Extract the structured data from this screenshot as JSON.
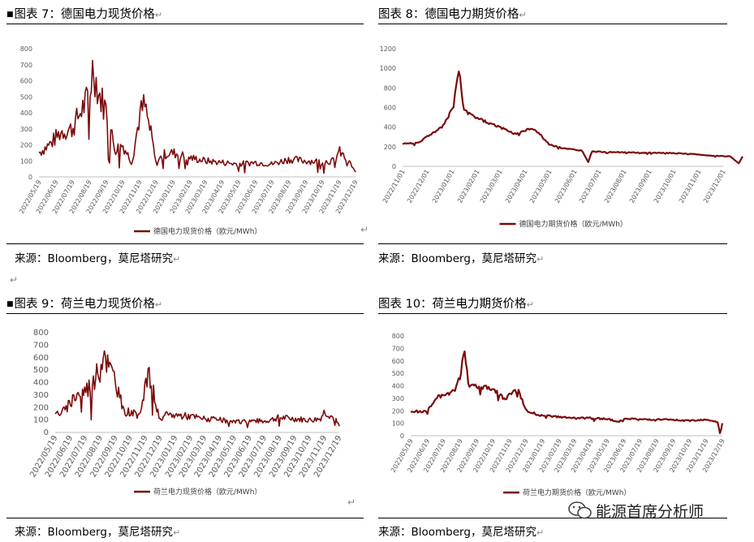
{
  "figures": [
    {
      "title": "图表 7：德国电力现货价格",
      "source": "来源：Bloomberg，莫尼塔研究"
    },
    {
      "title": "图表 8：德国电力期货价格",
      "source": "来源：Bloomberg，莫尼塔研究"
    },
    {
      "title": "图表 9：荷兰电力现货价格",
      "source": "来源：Bloomberg，莫尼塔研究"
    },
    {
      "title": "图表 10：荷兰电力期货价格",
      "source": "来源：Bloomberg，莫尼塔研究"
    }
  ],
  "watermark": "能源首席分析师",
  "colors": {
    "series": "#7b0a0a",
    "axis": "#bfbfbf",
    "text": "#595959"
  },
  "chart_data": [
    {
      "type": "line",
      "series": [
        {
          "name": "德国电力现货价格（欧元/MWh）",
          "x": [
            "2022-05-19",
            "2022-06-10",
            "2022-06-28",
            "2022-07-19",
            "2022-08-05",
            "2022-08-19",
            "2022-08-26",
            "2022-09-05",
            "2022-09-19",
            "2022-10-05",
            "2022-10-19",
            "2022-11-05",
            "2022-11-19",
            "2022-11-28",
            "2022-12-12",
            "2022-12-19",
            "2023-01-01",
            "2023-01-19",
            "2023-02-19",
            "2023-03-19",
            "2023-04-19",
            "2023-05-19",
            "2023-06-19",
            "2023-07-19",
            "2023-08-19",
            "2023-09-19",
            "2023-10-19",
            "2023-11-10",
            "2023-11-19",
            "2023-12-10",
            "2023-12-19"
          ],
          "values": [
            150,
            210,
            280,
            300,
            420,
            500,
            700,
            520,
            420,
            170,
            200,
            90,
            380,
            450,
            230,
            80,
            140,
            150,
            120,
            100,
            90,
            80,
            90,
            80,
            110,
            100,
            95,
            100,
            160,
            80,
            30
          ]
        }
      ],
      "xticks": [
        "2022/05/19",
        "2022/06/19",
        "2022/07/19",
        "2022/08/19",
        "2022/09/19",
        "2022/10/19",
        "2022/11/19",
        "2022/12/19",
        "2023/01/19",
        "2023/02/19",
        "2023/03/19",
        "2023/04/19",
        "2023/05/19",
        "2023/06/19",
        "2023/07/19",
        "2023/08/19",
        "2023/09/19",
        "2023/10/19",
        "2023/11/19",
        "2023/12/19"
      ],
      "yticks": [
        0,
        100,
        200,
        300,
        400,
        500,
        600,
        700,
        800
      ],
      "ylim": [
        0,
        800
      ],
      "legend": "德国电力现货价格（欧元/MWh）",
      "legend_position": "bottom"
    },
    {
      "type": "line",
      "series": [
        {
          "name": "德国电力期货价格（欧元/MWh）",
          "x": [
            "2022-11-01",
            "2022-11-20",
            "2022-12-10",
            "2022-12-20",
            "2023-01-01",
            "2023-01-10",
            "2023-01-15",
            "2023-01-25",
            "2023-02-15",
            "2023-03-01",
            "2023-03-20",
            "2023-04-10",
            "2023-04-20",
            "2023-05-01",
            "2023-05-20",
            "2023-06-10",
            "2023-06-18",
            "2023-06-22",
            "2023-07-15",
            "2023-08-15",
            "2023-09-15",
            "2023-10-15",
            "2023-11-15",
            "2023-12-10",
            "2023-12-20",
            "2023-12-25"
          ],
          "values": [
            230,
            240,
            350,
            400,
            580,
            990,
            570,
            520,
            440,
            400,
            330,
            390,
            320,
            220,
            180,
            160,
            40,
            150,
            145,
            140,
            138,
            130,
            110,
            100,
            30,
            100
          ]
        }
      ],
      "xticks": [
        "2022/11/01",
        "2022/12/01",
        "2023/01/01",
        "2023/02/01",
        "2023/03/01",
        "2023/04/01",
        "2023/05/01",
        "2023/06/01",
        "2023/07/01",
        "2023/08/01",
        "2023/09/01",
        "2023/10/01",
        "2023/11/01",
        "2023/12/01"
      ],
      "yticks": [
        0,
        200,
        400,
        600,
        800,
        1000,
        1200
      ],
      "ylim": [
        0,
        1200
      ],
      "legend": "德国电力期货价格（欧元/MWh）",
      "legend_position": "bottom"
    },
    {
      "type": "line",
      "series": [
        {
          "name": "荷兰电力现货价格（欧元/MWh）",
          "x": [
            "2022-05-19",
            "2022-06-10",
            "2022-06-28",
            "2022-07-19",
            "2022-08-05",
            "2022-08-19",
            "2022-08-26",
            "2022-09-05",
            "2022-09-19",
            "2022-10-05",
            "2022-10-19",
            "2022-11-05",
            "2022-11-19",
            "2022-11-28",
            "2022-12-12",
            "2022-12-19",
            "2023-01-01",
            "2023-01-19",
            "2023-02-19",
            "2023-03-19",
            "2023-04-19",
            "2023-05-19",
            "2023-06-19",
            "2023-07-19",
            "2023-08-19",
            "2023-09-19",
            "2023-10-19",
            "2023-11-10",
            "2023-11-19",
            "2023-12-10",
            "2023-12-19"
          ],
          "values": [
            150,
            180,
            300,
            340,
            400,
            520,
            690,
            520,
            430,
            160,
            170,
            120,
            400,
            450,
            200,
            90,
            140,
            140,
            130,
            110,
            100,
            80,
            95,
            90,
            120,
            110,
            100,
            110,
            170,
            110,
            50
          ]
        }
      ],
      "xticks": [
        "2022/05/19",
        "2022/06/19",
        "2022/07/19",
        "2022/08/19",
        "2022/09/19",
        "2022/10/19",
        "2022/11/19",
        "2022/12/19",
        "2023/01/19",
        "2023/02/19",
        "2023/03/19",
        "2023/04/19",
        "2023/05/19",
        "2023/06/19",
        "2023/07/19",
        "2023/08/19",
        "2023/09/19",
        "2023/10/19",
        "2023/11/19",
        "2023/12/19"
      ],
      "yticks": [
        0,
        100,
        200,
        300,
        400,
        500,
        600,
        700,
        800
      ],
      "ylim": [
        0,
        800
      ],
      "legend": "荷兰电力现货价格（欧元/MWh）",
      "legend_position": "bottom"
    },
    {
      "type": "line",
      "series": [
        {
          "name": "荷兰电力期货价格（欧元/MWh）",
          "x": [
            "2022-05-19",
            "2022-06-19",
            "2022-07-10",
            "2022-07-19",
            "2022-08-10",
            "2022-08-19",
            "2022-08-26",
            "2022-09-05",
            "2022-09-19",
            "2022-10-19",
            "2022-11-10",
            "2022-11-19",
            "2022-12-05",
            "2022-12-19",
            "2023-01-10",
            "2023-01-19",
            "2023-02-19",
            "2023-03-19",
            "2023-04-19",
            "2023-05-19",
            "2023-06-10",
            "2023-06-19",
            "2023-07-19",
            "2023-08-19",
            "2023-09-19",
            "2023-10-19",
            "2023-11-19",
            "2023-12-10",
            "2023-12-15",
            "2023-12-19"
          ],
          "values": [
            190,
            200,
            320,
            310,
            380,
            470,
            710,
            410,
            400,
            380,
            290,
            330,
            370,
            200,
            170,
            160,
            150,
            140,
            140,
            135,
            110,
            140,
            130,
            130,
            125,
            120,
            130,
            110,
            10,
            100
          ]
        }
      ],
      "xticks": [
        "2022/05/19",
        "2022/06/19",
        "2022/07/19",
        "2022/08/19",
        "2022/09/19",
        "2022/10/19",
        "2022/11/19",
        "2022/12/19",
        "2023/01/19",
        "2023/02/19",
        "2023/03/19",
        "2023/04/19",
        "2023/05/19",
        "2023/06/19",
        "2023/07/19",
        "2023/08/19",
        "2023/09/19",
        "2023/10/19",
        "2023/11/19",
        "2023/12/19"
      ],
      "yticks": [
        0,
        100,
        200,
        300,
        400,
        500,
        600,
        700,
        800
      ],
      "ylim": [
        0,
        800
      ],
      "legend": "荷兰电力期货价格（欧元/MWh）",
      "legend_position": "bottom"
    }
  ]
}
